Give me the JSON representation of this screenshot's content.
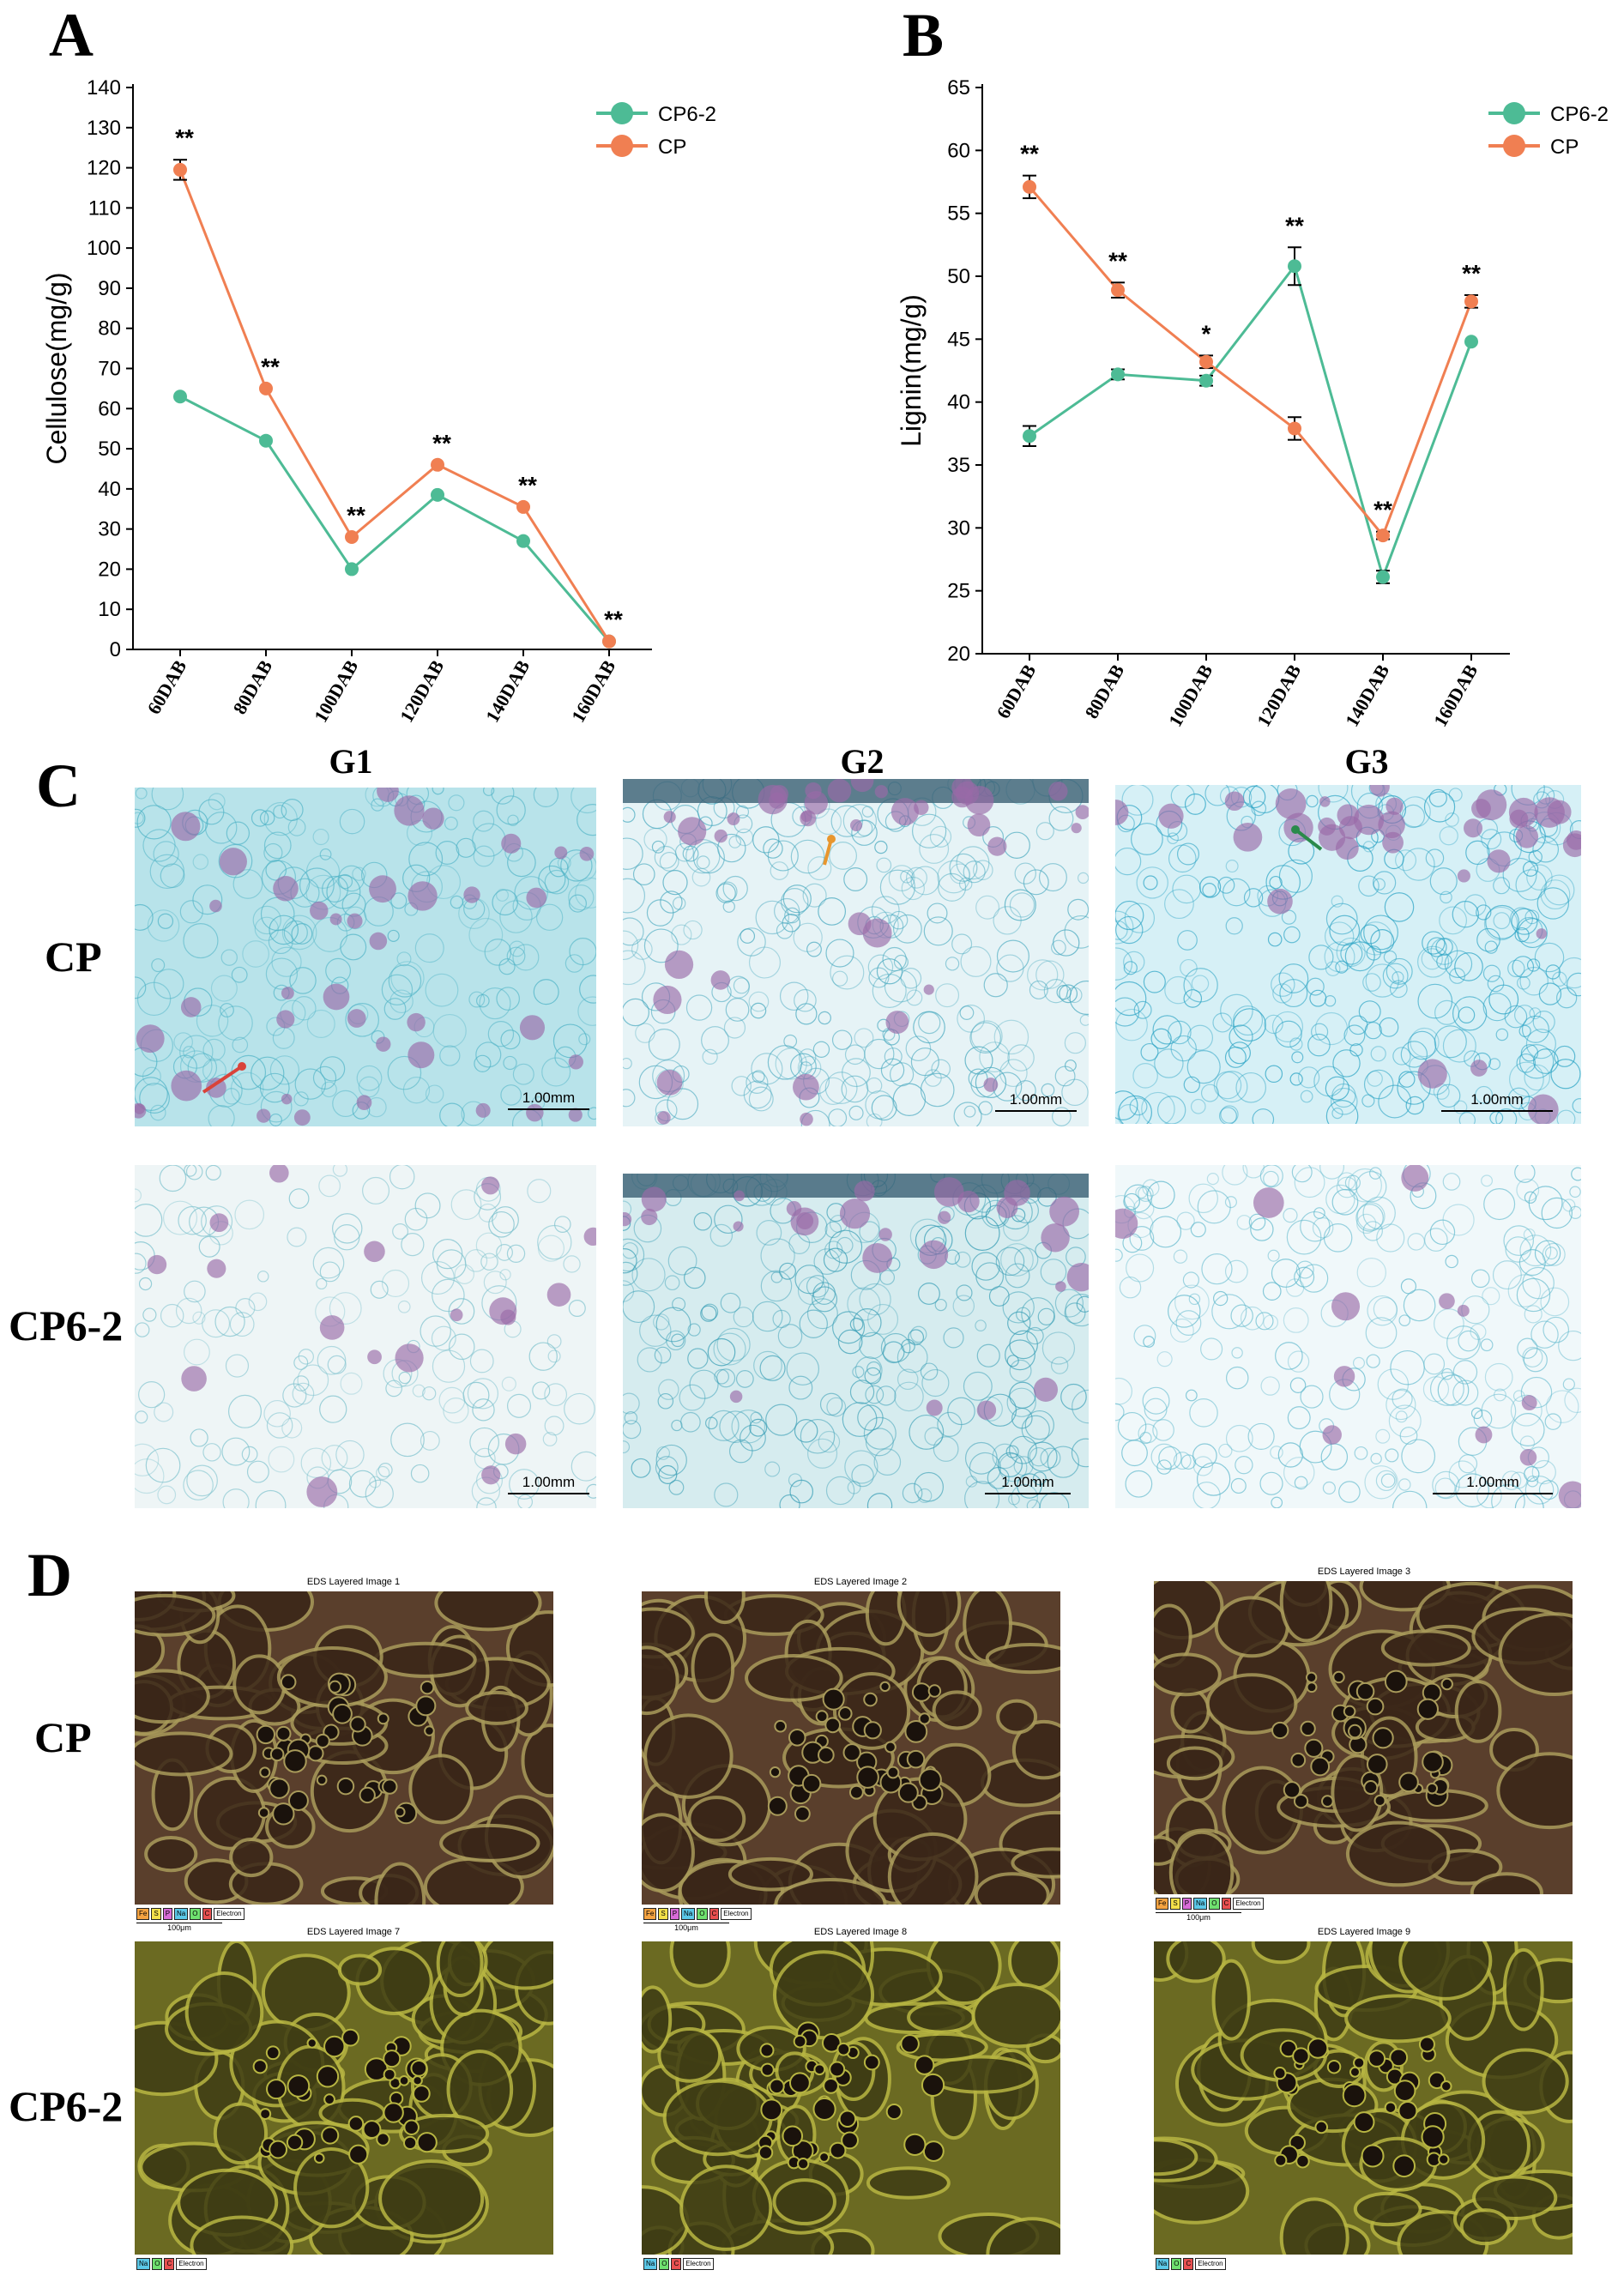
{
  "panels": {
    "a": "A",
    "b": "B",
    "c": "C",
    "d": "D"
  },
  "colors": {
    "cp62": "#4dbb95",
    "cp": "#f07f52"
  },
  "chart_data": [
    {
      "type": "line",
      "title": "",
      "xlabel": "",
      "ylabel": "Cellulose(mg/g)",
      "categories": [
        "60DAB",
        "80DAB",
        "100DAB",
        "120DAB",
        "140DAB",
        "160DAB"
      ],
      "yticks": [
        0,
        10,
        20,
        30,
        40,
        50,
        60,
        70,
        80,
        90,
        100,
        110,
        120,
        130,
        140
      ],
      "ylim": [
        0,
        140
      ],
      "legend_position": "top-right",
      "series": [
        {
          "name": "CP6-2",
          "values": [
            63,
            52,
            20,
            38.5,
            27,
            2
          ],
          "err": [
            0,
            0,
            0,
            0,
            0,
            0
          ]
        },
        {
          "name": "CP",
          "values": [
            119.5,
            65,
            28,
            46,
            35.5,
            2
          ],
          "err": [
            2.5,
            0,
            0,
            0,
            0,
            0
          ]
        }
      ],
      "annotations": [
        "**",
        "**",
        "**",
        "**",
        "**",
        "**"
      ]
    },
    {
      "type": "line",
      "title": "",
      "xlabel": "",
      "ylabel": "Lignin(mg/g)",
      "categories": [
        "60DAB",
        "80DAB",
        "100DAB",
        "120DAB",
        "140DAB",
        "160DAB"
      ],
      "yticks": [
        20,
        25,
        30,
        35,
        40,
        45,
        50,
        55,
        60,
        65
      ],
      "ylim": [
        20,
        65
      ],
      "legend_position": "top-right",
      "series": [
        {
          "name": "CP6-2",
          "values": [
            37.3,
            42.2,
            41.7,
            50.8,
            26.1,
            44.8
          ],
          "err": [
            0.8,
            0.4,
            0.4,
            1.5,
            0.5,
            0
          ]
        },
        {
          "name": "CP",
          "values": [
            57.1,
            48.9,
            43.2,
            37.9,
            29.4,
            48.0
          ],
          "err": [
            0.9,
            0.6,
            0.5,
            0.9,
            0.3,
            0.5
          ]
        }
      ],
      "annotations": [
        "**",
        "**",
        "*",
        "**",
        "**",
        "**"
      ]
    }
  ],
  "panel_c": {
    "columns": [
      "G1",
      "G2",
      "G3"
    ],
    "rows": [
      "CP",
      "CP6-2"
    ],
    "scale_label": "1.00mm"
  },
  "panel_d": {
    "rows": [
      "CP",
      "CP6-2"
    ],
    "titles": [
      "EDS Layered Image 1",
      "EDS Layered Image 2",
      "EDS Layered Image 3",
      "EDS Layered Image 7",
      "EDS Layered Image 8",
      "EDS Layered Image 9"
    ],
    "legend_top": [
      "Fe",
      "S",
      "P",
      "Na",
      "O",
      "C",
      "Electron"
    ],
    "legend_bottom": [
      "Na",
      "O",
      "C",
      "Electron"
    ],
    "scale_label": "100μm"
  }
}
